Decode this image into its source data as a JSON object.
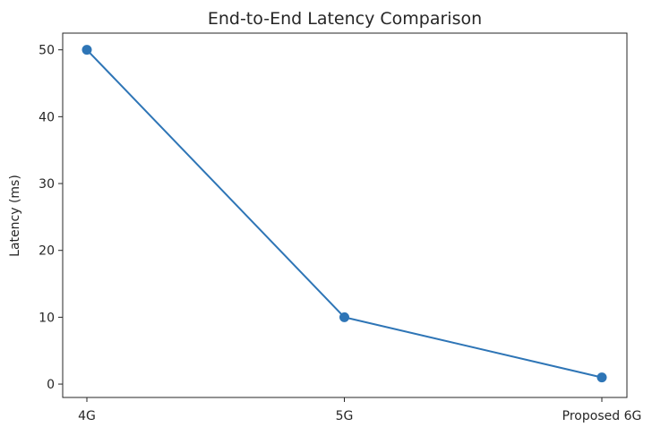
{
  "chart_data": {
    "type": "line",
    "title": "End-to-End Latency Comparison",
    "xlabel": "",
    "ylabel": "Latency (ms)",
    "categories": [
      "4G",
      "5G",
      "Proposed 6G"
    ],
    "series": [
      {
        "values": [
          50,
          10,
          1
        ],
        "color": "#2e75b6"
      }
    ],
    "ylim": [
      -2,
      52.5
    ],
    "yticks": [
      0,
      10,
      20,
      30,
      40,
      50
    ],
    "ytick_labels": [
      "0",
      "10",
      "20",
      "30",
      "40",
      "50"
    ],
    "grid": false,
    "legend": "none"
  }
}
